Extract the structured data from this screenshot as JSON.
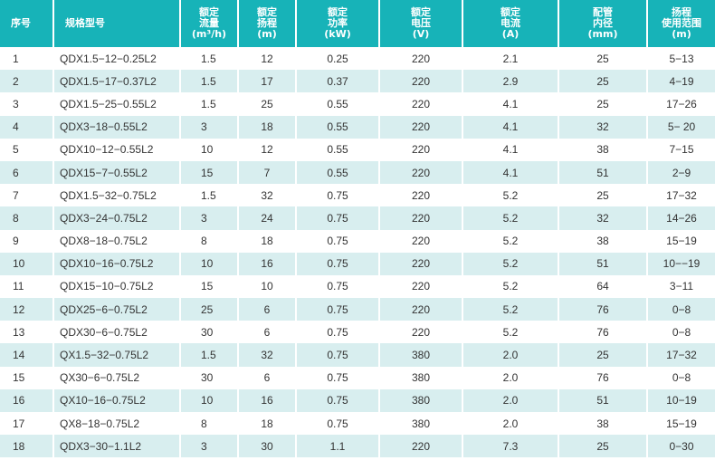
{
  "headers": [
    "序号",
    "规格型号",
    "额定\n流量\n(m³/h)",
    "额定\n扬程\n(m)",
    "额定\n功率\n(kW)",
    "额定\n电压\n(V)",
    "额定\n电流\n(A)",
    "配管\n内径\n(mm)",
    "扬程\n使用范围\n(m)"
  ],
  "rows": [
    [
      "1",
      "QDX1.5−12−0.25L2",
      "1.5",
      "12",
      "0.25",
      "220",
      "2.1",
      "25",
      "5−13"
    ],
    [
      "2",
      "QDX1.5−17−0.37L2",
      "1.5",
      "17",
      "0.37",
      "220",
      "2.9",
      "25",
      "4−19"
    ],
    [
      "3",
      "QDX1.5−25−0.55L2",
      "1.5",
      "25",
      "0.55",
      "220",
      "4.1",
      "25",
      "17−26"
    ],
    [
      "4",
      "QDX3−18−0.55L2",
      "3",
      "18",
      "0.55",
      "220",
      "4.1",
      "32",
      "5− 20"
    ],
    [
      "5",
      "QDX10−12−0.55L2",
      "10",
      "12",
      "0.55",
      "220",
      "4.1",
      "38",
      "7−15"
    ],
    [
      "6",
      "QDX15−7−0.55L2",
      "15",
      "7",
      "0.55",
      "220",
      "4.1",
      "51",
      "2−9"
    ],
    [
      "7",
      "QDX1.5−32−0.75L2",
      "1.5",
      "32",
      "0.75",
      "220",
      "5.2",
      "25",
      "17−32"
    ],
    [
      "8",
      "QDX3−24−0.75L2",
      "3",
      "24",
      "0.75",
      "220",
      "5.2",
      "32",
      "14−26"
    ],
    [
      "9",
      "QDX8−18−0.75L2",
      "8",
      "18",
      "0.75",
      "220",
      "5.2",
      "38",
      "15−19"
    ],
    [
      "10",
      "QDX10−16−0.75L2",
      "10",
      "16",
      "0.75",
      "220",
      "5.2",
      "51",
      "10−−19"
    ],
    [
      "11",
      "QDX15−10−0.75L2",
      "15",
      "10",
      "0.75",
      "220",
      "5.2",
      "64",
      "3−11"
    ],
    [
      "12",
      "QDX25−6−0.75L2",
      "25",
      "6",
      "0.75",
      "220",
      "5.2",
      "76",
      "0−8"
    ],
    [
      "13",
      "QDX30−6−0.75L2",
      "30",
      "6",
      "0.75",
      "220",
      "5.2",
      "76",
      "0−8"
    ],
    [
      "14",
      "QX1.5−32−0.75L2",
      "1.5",
      "32",
      "0.75",
      "380",
      "2.0",
      "25",
      "17−32"
    ],
    [
      "15",
      "QX30−6−0.75L2",
      "30",
      "6",
      "0.75",
      "380",
      "2.0",
      "76",
      "0−8"
    ],
    [
      "16",
      "QX10−16−0.75L2",
      "10",
      "16",
      "0.75",
      "380",
      "2.0",
      "51",
      "10−19"
    ],
    [
      "17",
      "QX8−18−0.75L2",
      "8",
      "18",
      "0.75",
      "380",
      "2.0",
      "38",
      "15−19"
    ],
    [
      "18",
      "QDX3−30−1.1L2",
      "3",
      "30",
      "1.1",
      "220",
      "7.3",
      "25",
      "0−30"
    ]
  ],
  "colors": {
    "header_bg": "#17b3b8",
    "stripe": "#d8eeef",
    "text": "#333333"
  }
}
